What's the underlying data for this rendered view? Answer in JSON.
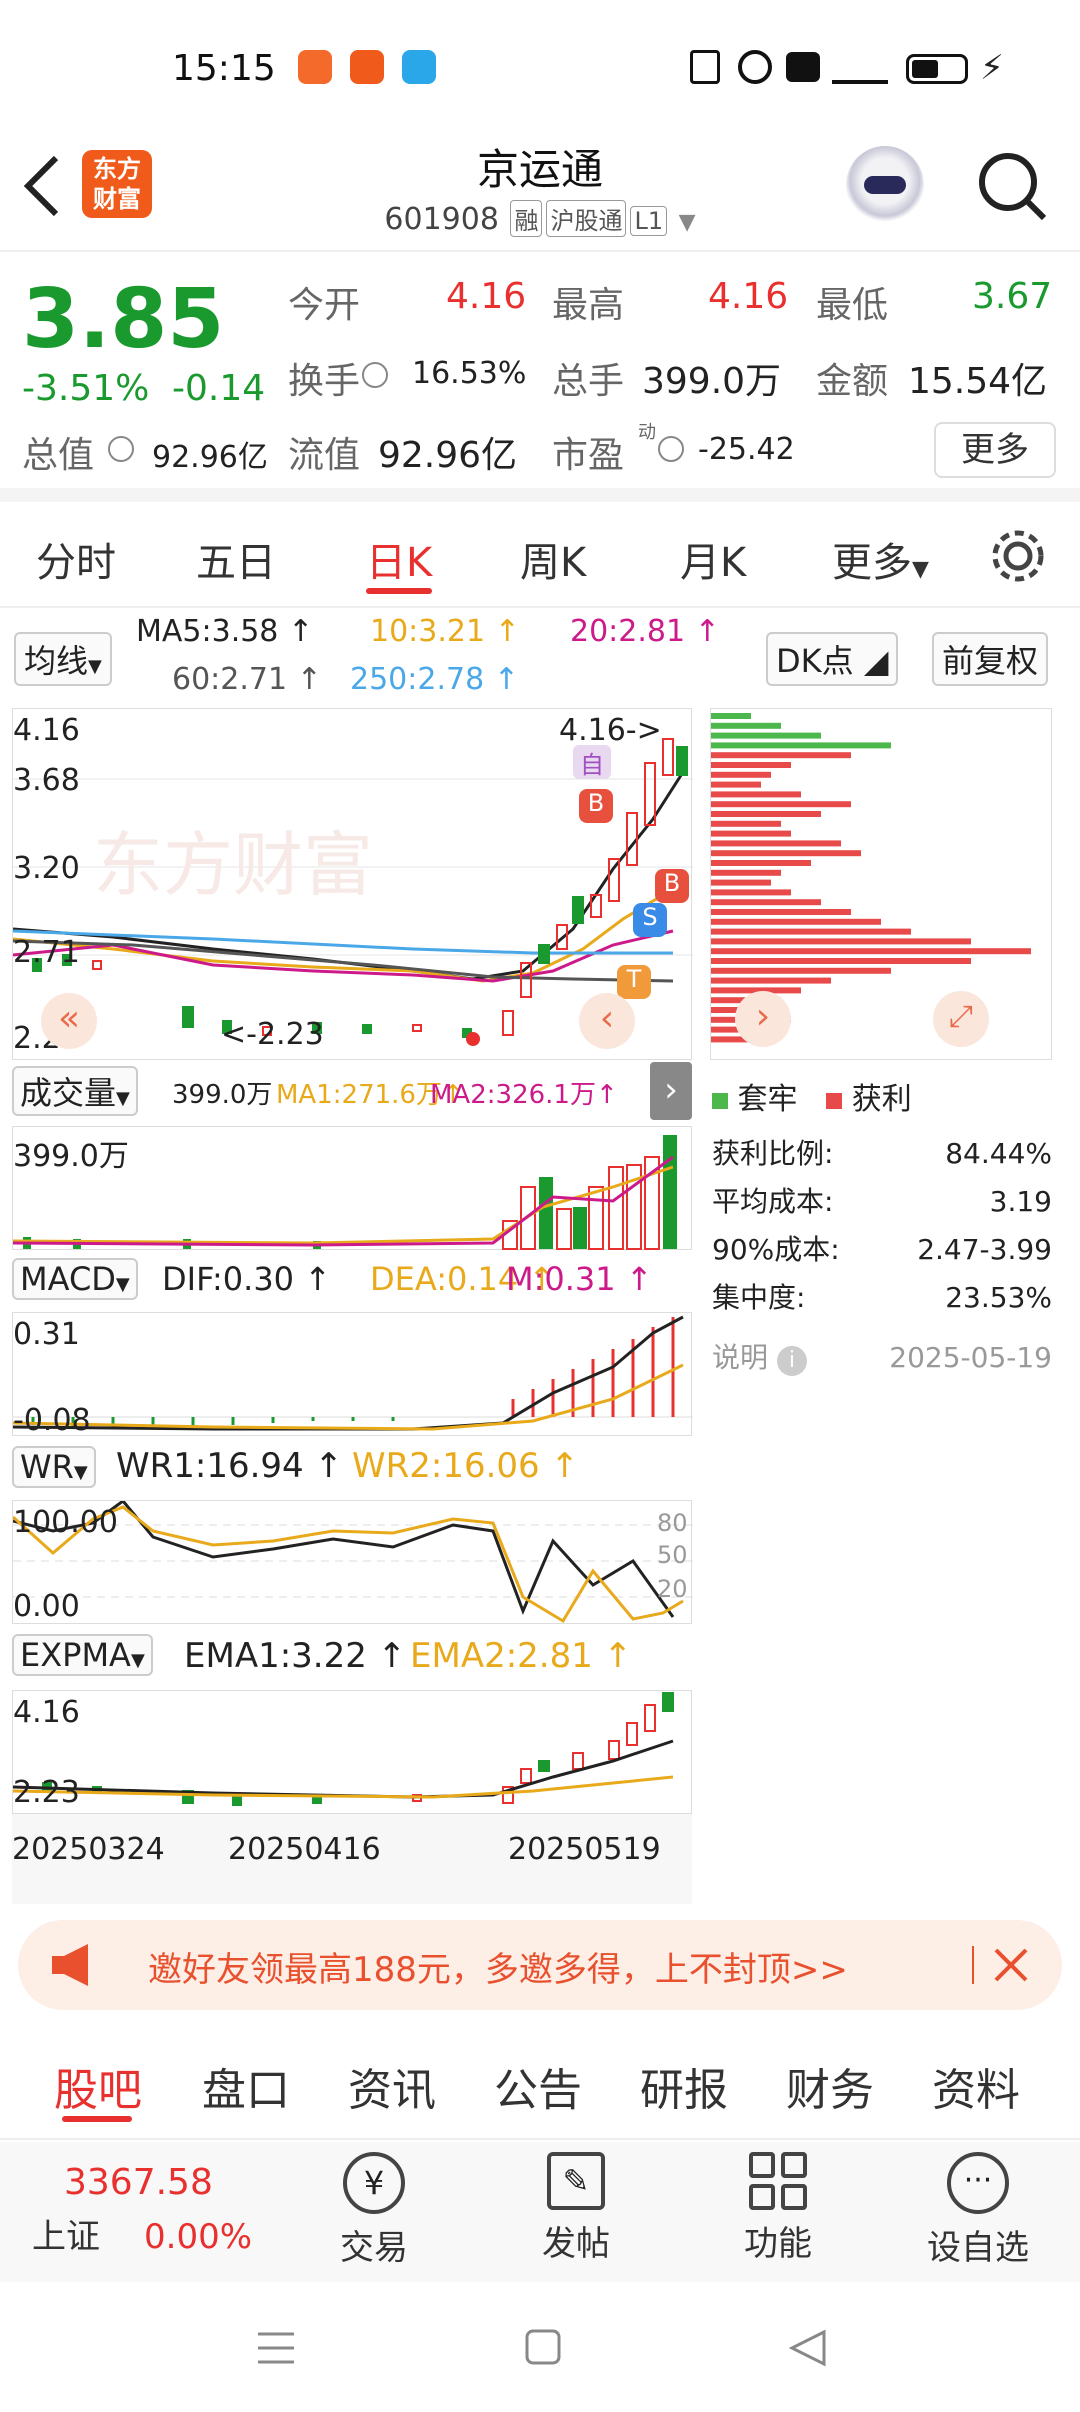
{
  "status": {
    "time": "15:15",
    "icons": [
      "nfc-icon",
      "alarm-icon",
      "hd-icon",
      "5g-signal-icon",
      "battery-icon",
      "charging-icon"
    ]
  },
  "header": {
    "back_icon": "chevron-left-icon",
    "logo_line1": "东方",
    "logo_line2": "财富",
    "title": "京运通",
    "code": "601908",
    "tags": [
      "融",
      "沪股通",
      "L1"
    ]
  },
  "quote": {
    "price": "3.85",
    "pct": "-3.51%",
    "chg": "-0.14",
    "open_label": "今开",
    "open": "4.16",
    "high_label": "最高",
    "high": "4.16",
    "low_label": "最低",
    "low": "3.67",
    "turnover_label": "换手",
    "turnover": "16.53%",
    "vol_label": "总手",
    "vol": "399.0万",
    "amt_label": "金额",
    "amt": "15.54亿",
    "mcap_label": "总值",
    "mcap": "92.96亿",
    "float_label": "流值",
    "float": "92.96亿",
    "pe_label": "市盈",
    "pe_sup": "动",
    "pe": "-25.42",
    "more": "更多"
  },
  "tabs": [
    "分时",
    "五日",
    "日K",
    "周K",
    "月K",
    "更多"
  ],
  "kline": {
    "ma_btn": "均线",
    "ma5": "MA5:3.58",
    "ma10": "10:3.21",
    "ma20": "20:2.81",
    "ma60": "60:2.71",
    "ma250": "250:2.78",
    "dk_btn": "DK点",
    "fq_btn": "前复权",
    "y_high": "4.16",
    "y2": "3.68",
    "y3": "3.20",
    "y4": "2.71",
    "y_low": "2.23",
    "max_label": "4.16->",
    "min_label": "<-2.23",
    "mark_zi": "自",
    "mark_b": "B",
    "mark_s": "S",
    "mark_t": "T"
  },
  "chips": {
    "legend1": "套牢",
    "legend2": "获利",
    "profit_label": "获利比例:",
    "profit": "84.44%",
    "avg_label": "平均成本:",
    "avg": "3.19",
    "c90_label": "90%成本:",
    "c90": "2.47-3.99",
    "conc_label": "集中度:",
    "conc": "23.53%",
    "note_label": "说明",
    "date": "2025-05-19"
  },
  "volume": {
    "btn": "成交量",
    "v": "399.0万",
    "ma1": "MA1:271.6万",
    "ma2": "MA2:326.1万",
    "y": "399.0万"
  },
  "macd": {
    "btn": "MACD",
    "dif": "DIF:0.30",
    "dea": "DEA:0.14",
    "m": "M:0.31",
    "y1": "0.31",
    "y2": "-0.08"
  },
  "wr": {
    "btn": "WR",
    "wr1": "WR1:16.94",
    "wr2": "WR2:16.06",
    "y1": "100.00",
    "y2": "0.00",
    "r80": "80",
    "r50": "50",
    "r20": "20"
  },
  "expma": {
    "btn": "EXPMA",
    "ema1": "EMA1:3.22",
    "ema2": "EMA2:2.81",
    "y1": "4.16",
    "y2": "2.23"
  },
  "dates": [
    "20250324",
    "20250416",
    "20250519"
  ],
  "banner": {
    "text": "邀好友领最高188元，多邀多得，上不封顶>>"
  },
  "bottom_tabs": [
    "股吧",
    "盘口",
    "资讯",
    "公告",
    "研报",
    "财务",
    "资料"
  ],
  "footer": {
    "index_value": "3367.58",
    "index_name": "上证",
    "index_pct": "0.00%",
    "trade": "交易",
    "post": "发帖",
    "func": "功能",
    "watch": "设自选"
  },
  "colors": {
    "up": "#e8302e",
    "down": "#1a9a2e",
    "accent": "#f05a1a"
  }
}
